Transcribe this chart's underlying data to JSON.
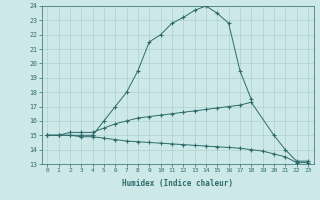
{
  "xlabel": "Humidex (Indice chaleur)",
  "x_values": [
    0,
    1,
    2,
    3,
    4,
    5,
    6,
    7,
    8,
    9,
    10,
    11,
    12,
    13,
    14,
    15,
    16,
    17,
    18,
    19,
    20,
    21,
    22,
    23
  ],
  "curve1": [
    15,
    15,
    15,
    15,
    15,
    16,
    17,
    18,
    19.5,
    21.5,
    22,
    22.8,
    23.2,
    23.7,
    24.0,
    23.5,
    22.8,
    19.5,
    17.5,
    null,
    null,
    null,
    null,
    null
  ],
  "curve2": [
    15,
    15,
    15.2,
    15.2,
    15.2,
    15.5,
    15.8,
    16.0,
    16.2,
    16.3,
    16.4,
    16.5,
    16.6,
    16.7,
    16.8,
    16.9,
    17.0,
    17.1,
    17.3,
    null,
    15.0,
    14.0,
    13.2,
    13.2
  ],
  "curve3": [
    15,
    15,
    15,
    14.9,
    14.9,
    14.8,
    14.7,
    14.6,
    14.55,
    14.5,
    14.45,
    14.4,
    14.35,
    14.3,
    14.25,
    14.2,
    14.15,
    14.1,
    14.0,
    13.9,
    13.7,
    13.5,
    13.1,
    13.1
  ],
  "line_color": "#2e6b6b",
  "bg_color": "#cde8e8",
  "grid_color": "#b0d0d0",
  "ylim": [
    13,
    24
  ],
  "xlim": [
    -0.5,
    23.5
  ],
  "yticks": [
    13,
    14,
    15,
    16,
    17,
    18,
    19,
    20,
    21,
    22,
    23,
    24
  ],
  "xticks": [
    0,
    1,
    2,
    3,
    4,
    5,
    6,
    7,
    8,
    9,
    10,
    11,
    12,
    13,
    14,
    15,
    16,
    17,
    18,
    19,
    20,
    21,
    22,
    23
  ]
}
